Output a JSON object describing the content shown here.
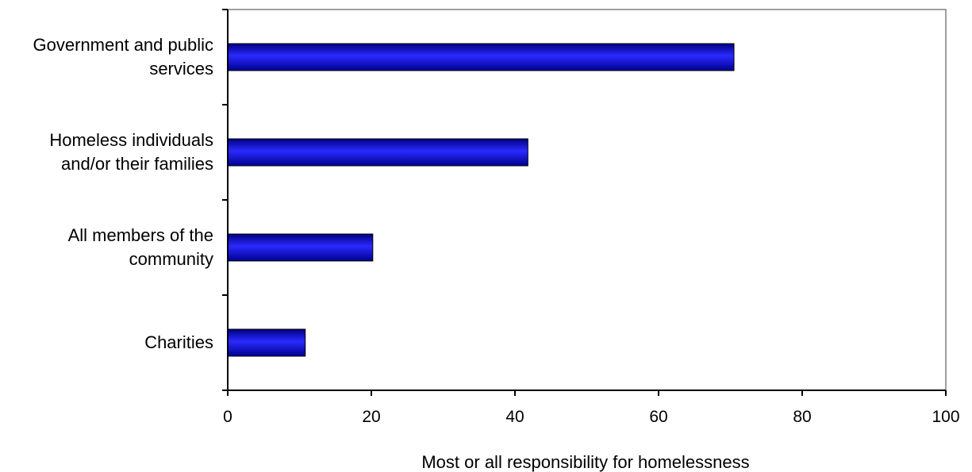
{
  "chart_data": {
    "type": "bar",
    "orientation": "horizontal",
    "categories": [
      [
        "Government and public",
        "services"
      ],
      [
        "Homeless individuals",
        "and/or their families"
      ],
      [
        "All members of the",
        "community"
      ],
      [
        "Charities"
      ]
    ],
    "values": [
      70.5,
      41.8,
      20.2,
      10.8
    ],
    "xlabel": "Most or all responsibility for homelessness",
    "xlim": [
      0,
      100
    ],
    "xticks": [
      "0",
      "20",
      "40",
      "60",
      "80",
      "100"
    ],
    "grid": false,
    "legend": "none",
    "colors": {
      "bar_light": "#2a2aff",
      "bar_dark": "#000080",
      "axis": "#000000",
      "frame": "#808080"
    }
  }
}
